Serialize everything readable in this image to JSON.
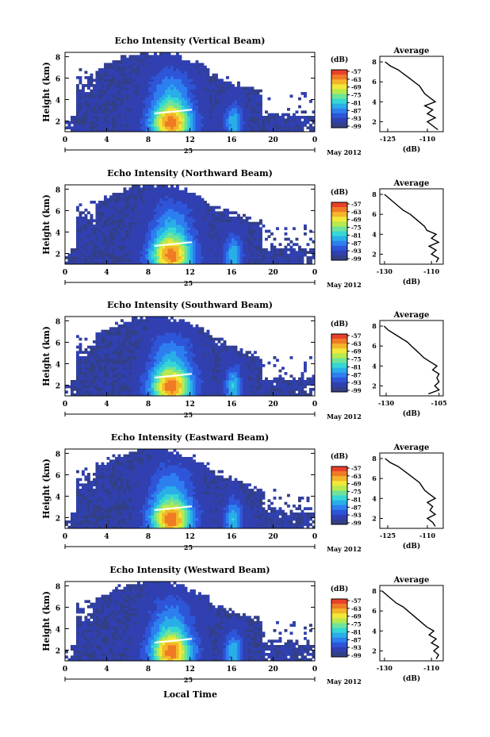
{
  "figure": {
    "xlabel": "Local Time",
    "date_label": "May 2012",
    "colorbar_unit": "(dB)",
    "colorbar_ticks": [
      "-57",
      "-63",
      "-69",
      "-75",
      "-81",
      "-87",
      "-93",
      "-99"
    ],
    "colorbar_colors": [
      "#e8412a",
      "#f07b25",
      "#f4b52a",
      "#f1e83a",
      "#b8ea4d",
      "#6fe39a",
      "#35d7d4",
      "#29aee8",
      "#2d7ff0",
      "#2e55d8",
      "#3040b0",
      "#333f86"
    ],
    "background_echo_color": "#333f86",
    "avg_title": "Average",
    "avg_xlabel": "(dB)"
  },
  "chart_data": [
    {
      "type": "heatmap",
      "title": "Echo Intensity (Vertical Beam)",
      "ylabel": "Height (km)",
      "x_ticks": [
        "0",
        "4",
        "8",
        "12",
        "16",
        "20",
        "0"
      ],
      "x_sub_tick": "25",
      "y_ticks": [
        "2",
        "4",
        "6",
        "8"
      ],
      "xlim": [
        0,
        24
      ],
      "ylim": [
        1,
        8.4
      ],
      "zlim": [
        -99,
        -57
      ],
      "average": {
        "type": "line",
        "title": "Average",
        "xlabel": "(dB)",
        "xticks": [
          "-125",
          "-110"
        ],
        "yticks": [
          "2",
          "4",
          "6",
          "8"
        ],
        "xlim": [
          -128,
          -104
        ],
        "height": [
          1.2,
          1.6,
          2.0,
          2.4,
          2.8,
          3.2,
          3.6,
          4.0,
          4.4,
          4.8,
          5.2,
          5.6,
          6.0,
          6.4,
          6.8,
          7.2,
          7.6,
          8.0
        ],
        "db": [
          -106,
          -108,
          -110,
          -107,
          -110,
          -108,
          -111,
          -107,
          -109,
          -111,
          -112,
          -113,
          -115,
          -117,
          -119,
          -121,
          -124,
          -126
        ]
      }
    },
    {
      "type": "heatmap",
      "title": "Echo Intensity (Northward Beam)",
      "ylabel": "Height (km)",
      "x_ticks": [
        "0",
        "4",
        "8",
        "12",
        "16",
        "20",
        "0"
      ],
      "x_sub_tick": "25",
      "y_ticks": [
        "2",
        "4",
        "6",
        "8"
      ],
      "xlim": [
        0,
        24
      ],
      "ylim": [
        1,
        8.4
      ],
      "zlim": [
        -99,
        -57
      ],
      "average": {
        "type": "line",
        "title": "Average",
        "xlabel": "(dB)",
        "xticks": [
          "-130",
          "-110"
        ],
        "yticks": [
          "2",
          "4",
          "6",
          "8"
        ],
        "xlim": [
          -132,
          -105
        ],
        "height": [
          1.2,
          1.6,
          2.0,
          2.4,
          2.8,
          3.2,
          3.6,
          4.0,
          4.4,
          4.8,
          5.2,
          5.6,
          6.0,
          6.4,
          6.8,
          7.2,
          7.6,
          8.0
        ],
        "db": [
          -108,
          -107,
          -110,
          -108,
          -111,
          -107,
          -110,
          -108,
          -112,
          -113,
          -115,
          -117,
          -119,
          -122,
          -124,
          -126,
          -128,
          -130
        ]
      }
    },
    {
      "type": "heatmap",
      "title": "Echo Intensity (Southward Beam)",
      "ylabel": "Height (km)",
      "x_ticks": [
        "0",
        "4",
        "8",
        "12",
        "16",
        "20",
        "0"
      ],
      "x_sub_tick": "25",
      "y_ticks": [
        "2",
        "4",
        "6",
        "8"
      ],
      "xlim": [
        0,
        24
      ],
      "ylim": [
        1,
        8.4
      ],
      "zlim": [
        -99,
        -57
      ],
      "average": {
        "type": "line",
        "title": "Average",
        "xlabel": "(dB)",
        "xticks": [
          "-130",
          "-105"
        ],
        "yticks": [
          "2",
          "4",
          "6",
          "8"
        ],
        "xlim": [
          -133,
          -103
        ],
        "height": [
          1.2,
          1.6,
          2.0,
          2.4,
          2.8,
          3.2,
          3.6,
          4.0,
          4.4,
          4.8,
          5.2,
          5.6,
          6.0,
          6.4,
          6.8,
          7.2,
          7.6,
          8.0
        ],
        "db": [
          -110,
          -105,
          -107,
          -105,
          -106,
          -105,
          -108,
          -106,
          -109,
          -112,
          -114,
          -116,
          -118,
          -120,
          -123,
          -126,
          -129,
          -131
        ]
      }
    },
    {
      "type": "heatmap",
      "title": "Echo Intensity (Eastward Beam)",
      "ylabel": "Height (km)",
      "x_ticks": [
        "0",
        "4",
        "8",
        "12",
        "16",
        "20",
        "0"
      ],
      "x_sub_tick": "25",
      "y_ticks": [
        "2",
        "4",
        "6",
        "8"
      ],
      "xlim": [
        0,
        24
      ],
      "ylim": [
        1,
        8.4
      ],
      "zlim": [
        -99,
        -57
      ],
      "average": {
        "type": "line",
        "title": "Average",
        "xlabel": "(dB)",
        "xticks": [
          "-125",
          "-110"
        ],
        "yticks": [
          "2",
          "4",
          "6",
          "8"
        ],
        "xlim": [
          -128,
          -104
        ],
        "height": [
          1.2,
          1.6,
          2.0,
          2.4,
          2.8,
          3.2,
          3.6,
          4.0,
          4.4,
          4.8,
          5.2,
          5.6,
          6.0,
          6.4,
          6.8,
          7.2,
          7.6,
          8.0
        ],
        "db": [
          -107,
          -108,
          -110,
          -107,
          -109,
          -108,
          -110,
          -107,
          -109,
          -111,
          -112,
          -113,
          -115,
          -117,
          -119,
          -121,
          -124,
          -126
        ]
      }
    },
    {
      "type": "heatmap",
      "title": "Echo Intensity (Westward Beam)",
      "ylabel": "Height (km)",
      "x_ticks": [
        "0",
        "4",
        "8",
        "12",
        "16",
        "20",
        "0"
      ],
      "x_sub_tick": "25",
      "y_ticks": [
        "2",
        "4",
        "6",
        "8"
      ],
      "xlim": [
        0,
        24
      ],
      "ylim": [
        1,
        8.4
      ],
      "zlim": [
        -99,
        -57
      ],
      "average": {
        "type": "line",
        "title": "Average",
        "xlabel": "(dB)",
        "xticks": [
          "-130",
          "-110"
        ],
        "yticks": [
          "2",
          "4",
          "6",
          "8"
        ],
        "xlim": [
          -132,
          -105
        ],
        "height": [
          1.2,
          1.6,
          2.0,
          2.4,
          2.8,
          3.2,
          3.6,
          4.0,
          4.4,
          4.8,
          5.2,
          5.6,
          6.0,
          6.4,
          6.8,
          7.2,
          7.6,
          8.0
        ],
        "db": [
          -108,
          -107,
          -109,
          -107,
          -110,
          -108,
          -111,
          -109,
          -112,
          -114,
          -116,
          -118,
          -120,
          -122,
          -125,
          -127,
          -129,
          -131
        ]
      }
    }
  ]
}
